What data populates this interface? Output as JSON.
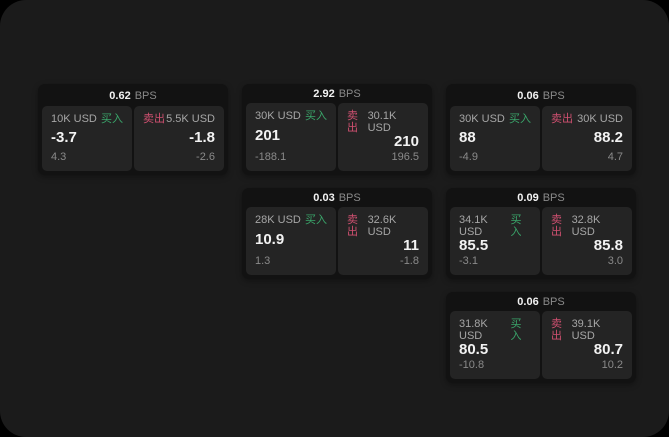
{
  "colors": {
    "page_bg": "#1b1b1b",
    "card_bg": "#121212",
    "panel_bg": "#242424",
    "buy_green": "#3aa56a",
    "sell_red": "#cf5070",
    "text_primary": "#f2f2f2",
    "text_secondary": "#a6a6a6",
    "text_muted": "#8a8a8a"
  },
  "labels": {
    "bps_unit": "BPS",
    "buy": "买入",
    "sell": "卖出"
  },
  "cards": [
    {
      "bps": "0.62",
      "buy": {
        "size": "10K USD",
        "value": "-3.7",
        "sub": "4.3"
      },
      "sell": {
        "size": "5.5K USD",
        "value": "-1.8",
        "sub": "-2.6"
      }
    },
    {
      "bps": "2.92",
      "buy": {
        "size": "30K USD",
        "value": "201",
        "sub": "-188.1"
      },
      "sell": {
        "size": "30.1K USD",
        "value": "210",
        "sub": "196.5"
      }
    },
    {
      "bps": "0.06",
      "buy": {
        "size": "30K USD",
        "value": "88",
        "sub": "-4.9"
      },
      "sell": {
        "size": "30K USD",
        "value": "88.2",
        "sub": "4.7"
      }
    },
    {
      "bps": "0.03",
      "buy": {
        "size": "28K USD",
        "value": "10.9",
        "sub": "1.3"
      },
      "sell": {
        "size": "32.6K USD",
        "value": "11",
        "sub": "-1.8"
      }
    },
    {
      "bps": "0.09",
      "buy": {
        "size": "34.1K USD",
        "value": "85.5",
        "sub": "-3.1"
      },
      "sell": {
        "size": "32.8K USD",
        "value": "85.8",
        "sub": "3.0"
      }
    },
    {
      "bps": "0.06",
      "buy": {
        "size": "31.8K USD",
        "value": "80.5",
        "sub": "-10.8"
      },
      "sell": {
        "size": "39.1K USD",
        "value": "80.7",
        "sub": "10.2"
      }
    }
  ]
}
